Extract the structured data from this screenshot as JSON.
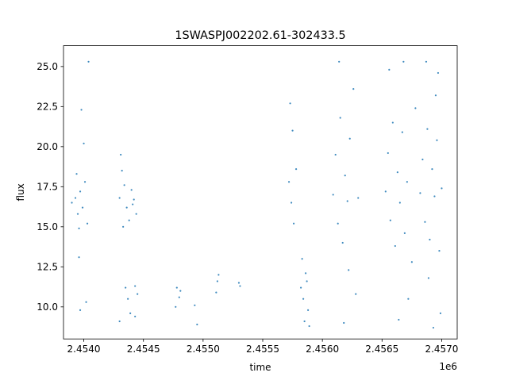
{
  "chart_data": {
    "type": "scatter",
    "title": "1SWASPJ002202.61-302433.5",
    "xlabel": "time",
    "ylabel": "flux",
    "x_offset_label": "1e6",
    "xlim": [
      2.45383,
      2.45713
    ],
    "ylim": [
      8.0,
      26.3
    ],
    "x_ticks": [
      2.454,
      2.4545,
      2.455,
      2.4555,
      2.456,
      2.4565,
      2.457
    ],
    "x_tick_labels": [
      "2.4540",
      "2.4545",
      "2.4550",
      "2.4555",
      "2.4560",
      "2.4565",
      "2.4570"
    ],
    "y_ticks": [
      10.0,
      12.5,
      15.0,
      17.5,
      20.0,
      22.5,
      25.0
    ],
    "y_tick_labels": [
      "10.0",
      "12.5",
      "15.0",
      "17.5",
      "20.0",
      "22.5",
      "25.0"
    ],
    "grid": false,
    "legend": "none",
    "point_color": "#1f77b4",
    "series": [
      {
        "points": [
          [
            2.4539,
            16.5
          ],
          [
            2.45393,
            16.8
          ],
          [
            2.45395,
            15.8
          ],
          [
            2.45397,
            17.2
          ],
          [
            2.45399,
            16.2
          ],
          [
            2.45401,
            17.8
          ],
          [
            2.45403,
            15.2
          ],
          [
            2.45394,
            18.3
          ],
          [
            2.45396,
            14.9
          ],
          [
            2.45398,
            22.3
          ],
          [
            2.454,
            20.2
          ],
          [
            2.45396,
            13.1
          ],
          [
            2.45402,
            10.3
          ],
          [
            2.45397,
            9.8
          ],
          [
            2.45404,
            25.3
          ],
          [
            2.4543,
            16.8
          ],
          [
            2.45432,
            18.5
          ],
          [
            2.45434,
            17.6
          ],
          [
            2.45436,
            16.2
          ],
          [
            2.45438,
            15.4
          ],
          [
            2.4544,
            17.3
          ],
          [
            2.45442,
            16.7
          ],
          [
            2.45444,
            15.8
          ],
          [
            2.45431,
            19.5
          ],
          [
            2.45433,
            15.0
          ],
          [
            2.45435,
            11.2
          ],
          [
            2.45437,
            10.5
          ],
          [
            2.45439,
            9.6
          ],
          [
            2.45441,
            16.4
          ],
          [
            2.45443,
            11.3
          ],
          [
            2.45445,
            10.8
          ],
          [
            2.45443,
            9.4
          ],
          [
            2.4543,
            9.1
          ],
          [
            2.45478,
            11.2
          ],
          [
            2.4548,
            10.6
          ],
          [
            2.45477,
            10.0
          ],
          [
            2.45481,
            11.0
          ],
          [
            2.45493,
            10.1
          ],
          [
            2.45495,
            8.9
          ],
          [
            2.45512,
            11.6
          ],
          [
            2.45513,
            12.0
          ],
          [
            2.45511,
            10.9
          ],
          [
            2.4553,
            11.5
          ],
          [
            2.45531,
            11.3
          ],
          [
            2.45572,
            17.8
          ],
          [
            2.45574,
            16.5
          ],
          [
            2.45576,
            15.2
          ],
          [
            2.45573,
            22.7
          ],
          [
            2.45575,
            21.0
          ],
          [
            2.45578,
            18.6
          ],
          [
            2.45582,
            11.2
          ],
          [
            2.45584,
            10.5
          ],
          [
            2.45586,
            12.1
          ],
          [
            2.45588,
            9.8
          ],
          [
            2.45583,
            13.0
          ],
          [
            2.45585,
            9.1
          ],
          [
            2.45587,
            11.6
          ],
          [
            2.45589,
            8.8
          ],
          [
            2.45609,
            17.0
          ],
          [
            2.45611,
            19.5
          ],
          [
            2.45613,
            15.2
          ],
          [
            2.45615,
            21.8
          ],
          [
            2.45617,
            14.0
          ],
          [
            2.45619,
            18.2
          ],
          [
            2.45621,
            16.6
          ],
          [
            2.45623,
            20.5
          ],
          [
            2.45614,
            25.3
          ],
          [
            2.45618,
            9.0
          ],
          [
            2.45622,
            12.3
          ],
          [
            2.45626,
            23.6
          ],
          [
            2.45628,
            10.8
          ],
          [
            2.4563,
            16.8
          ],
          [
            2.45653,
            17.2
          ],
          [
            2.45655,
            19.6
          ],
          [
            2.45657,
            15.4
          ],
          [
            2.45659,
            21.5
          ],
          [
            2.45661,
            13.8
          ],
          [
            2.45663,
            18.4
          ],
          [
            2.45665,
            16.5
          ],
          [
            2.45667,
            20.9
          ],
          [
            2.45669,
            14.6
          ],
          [
            2.45671,
            17.8
          ],
          [
            2.45656,
            24.8
          ],
          [
            2.45664,
            9.2
          ],
          [
            2.45668,
            25.3
          ],
          [
            2.45672,
            10.5
          ],
          [
            2.45675,
            12.8
          ],
          [
            2.45678,
            22.4
          ],
          [
            2.45682,
            17.1
          ],
          [
            2.45684,
            19.2
          ],
          [
            2.45686,
            15.3
          ],
          [
            2.45688,
            21.1
          ],
          [
            2.4569,
            14.2
          ],
          [
            2.45692,
            18.6
          ],
          [
            2.45694,
            16.9
          ],
          [
            2.45696,
            20.4
          ],
          [
            2.45698,
            13.5
          ],
          [
            2.457,
            17.4
          ],
          [
            2.45687,
            25.3
          ],
          [
            2.45693,
            8.7
          ],
          [
            2.45697,
            24.6
          ],
          [
            2.45699,
            9.6
          ],
          [
            2.45689,
            11.8
          ],
          [
            2.45695,
            23.2
          ]
        ]
      }
    ]
  }
}
